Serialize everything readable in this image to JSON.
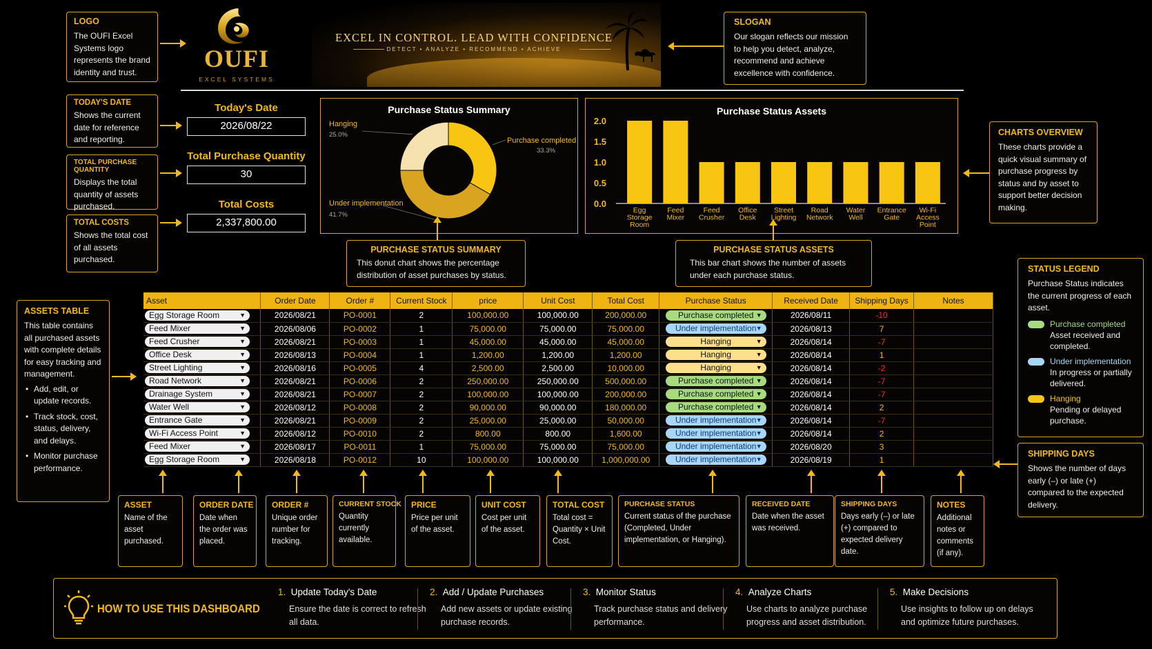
{
  "logo": {
    "mark": "OUFI",
    "sub": "EXCEL SYSTEMS"
  },
  "banner": {
    "headline": "EXCEL IN CONTROL. LEAD WITH CONFIDENCE",
    "tagline": "DETECT  •  ANALYZE  •  RECOMMEND  •  ACHIEVE"
  },
  "notes": {
    "logo": {
      "title": "LOGO",
      "text": "The OUFI Excel Systems logo represents the brand identity and trust."
    },
    "slogan": {
      "title": "SLOGAN",
      "text": "Our slogan reflects our mission to help you detect, analyze, recommend and achieve excellence with confidence."
    },
    "today": {
      "title": "TODAY'S DATE",
      "text": "Shows the current date for reference and reporting."
    },
    "qty": {
      "title": "TOTAL PURCHASE QUANTITY",
      "text": "Displays the total quantity of assets purchased."
    },
    "costs": {
      "title": "TOTAL COSTS",
      "text": "Shows the total cost of all assets purchased."
    },
    "charts": {
      "title": "CHARTS OVERVIEW",
      "text": "These charts provide a quick visual summary of purchase progress by status and by asset to support better decision making."
    },
    "summary": {
      "title": "PURCHASE STATUS SUMMARY",
      "text": "This donut chart shows the percentage distribution of asset purchases by status."
    },
    "assets": {
      "title": "PURCHASE STATUS ASSETS",
      "text": "This bar chart shows the number of assets under each purchase status."
    },
    "assets_table": {
      "title": "ASSETS TABLE",
      "text": "This table contains all purchased assets with complete details for easy tracking and management.",
      "bullets": [
        "Add, edit, or update records.",
        "Track stock, cost, status, delivery, and delays.",
        "Monitor purchase performance."
      ]
    },
    "legend": {
      "title": "STATUS LEGEND",
      "text": "Purchase Status indicates the current progress of each asset.",
      "items": [
        {
          "label": "Purchase completed",
          "desc": "Asset received and completed.",
          "color": "#a6dc7e"
        },
        {
          "label": "Under implementation",
          "desc": "In progress or partially delivered.",
          "color": "#a9d6f5"
        },
        {
          "label": "Hanging",
          "desc": "Pending or delayed purchase.",
          "color": "#f5c518"
        }
      ]
    },
    "shipping": {
      "title": "SHIPPING DAYS",
      "text": "Shows the number of days early (–) or late (+) compared to the expected delivery."
    }
  },
  "kpis": {
    "today_label": "Today's Date",
    "today_value": "2026/08/22",
    "qty_label": "Total Purchase Quantity",
    "qty_value": "30",
    "cost_label": "Total Costs",
    "cost_value": "2,337,800.00"
  },
  "table": {
    "columns": [
      "Asset",
      "Order Date",
      "Order #",
      "Current Stock",
      "price",
      "Unit Cost",
      "Total Cost",
      "Purchase Status",
      "Received Date",
      "Shipping Days",
      "Notes"
    ],
    "rows": [
      {
        "asset": "Egg Storage Room",
        "order_date": "2026/08/21",
        "order_no": "PO-0001",
        "stock": "2",
        "price": "100,000.00",
        "unit_cost": "100,000.00",
        "total": "200,000.00",
        "status": "Purchase completed",
        "received": "2026/08/11",
        "ship": "-10",
        "notes": ""
      },
      {
        "asset": "Feed Mixer",
        "order_date": "2026/08/06",
        "order_no": "PO-0002",
        "stock": "1",
        "price": "75,000.00",
        "unit_cost": "75,000.00",
        "total": "75,000.00",
        "status": "Under implementation",
        "received": "2026/08/13",
        "ship": "7",
        "notes": ""
      },
      {
        "asset": "Feed Crusher",
        "order_date": "2026/08/21",
        "order_no": "PO-0003",
        "stock": "1",
        "price": "45,000.00",
        "unit_cost": "45,000.00",
        "total": "45,000.00",
        "status": "Hanging",
        "received": "2026/08/14",
        "ship": "-7",
        "notes": ""
      },
      {
        "asset": "Office Desk",
        "order_date": "2026/08/13",
        "order_no": "PO-0004",
        "stock": "1",
        "price": "1,200.00",
        "unit_cost": "1,200.00",
        "total": "1,200.00",
        "status": "Hanging",
        "received": "2026/08/14",
        "ship": "1",
        "notes": ""
      },
      {
        "asset": "Street Lighting",
        "order_date": "2026/08/16",
        "order_no": "PO-0005",
        "stock": "4",
        "price": "2,500.00",
        "unit_cost": "2,500.00",
        "total": "10,000.00",
        "status": "Hanging",
        "received": "2026/08/14",
        "ship": "-2",
        "notes": ""
      },
      {
        "asset": "Road Network",
        "order_date": "2026/08/21",
        "order_no": "PO-0006",
        "stock": "2",
        "price": "250,000.00",
        "unit_cost": "250,000.00",
        "total": "500,000.00",
        "status": "Purchase completed",
        "received": "2026/08/14",
        "ship": "-7",
        "notes": ""
      },
      {
        "asset": "Drainage System",
        "order_date": "2026/08/21",
        "order_no": "PO-0007",
        "stock": "2",
        "price": "100,000.00",
        "unit_cost": "100,000.00",
        "total": "200,000.00",
        "status": "Purchase completed",
        "received": "2026/08/14",
        "ship": "-7",
        "notes": ""
      },
      {
        "asset": "Water Well",
        "order_date": "2026/08/12",
        "order_no": "PO-0008",
        "stock": "2",
        "price": "90,000.00",
        "unit_cost": "90,000.00",
        "total": "180,000.00",
        "status": "Purchase completed",
        "received": "2026/08/14",
        "ship": "2",
        "notes": ""
      },
      {
        "asset": "Entrance Gate",
        "order_date": "2026/08/21",
        "order_no": "PO-0009",
        "stock": "2",
        "price": "25,000.00",
        "unit_cost": "25,000.00",
        "total": "50,000.00",
        "status": "Under implementation",
        "received": "2026/08/14",
        "ship": "-7",
        "notes": ""
      },
      {
        "asset": "Wi-Fi Access Point",
        "order_date": "2026/08/12",
        "order_no": "PO-0010",
        "stock": "2",
        "price": "800.00",
        "unit_cost": "800.00",
        "total": "1,600.00",
        "status": "Under implementation",
        "received": "2026/08/14",
        "ship": "2",
        "notes": ""
      },
      {
        "asset": "Feed Mixer",
        "order_date": "2026/08/17",
        "order_no": "PO-0011",
        "stock": "1",
        "price": "75,000.00",
        "unit_cost": "75,000.00",
        "total": "75,000.00",
        "status": "Under implementation",
        "received": "2026/08/20",
        "ship": "3",
        "notes": ""
      },
      {
        "asset": "Egg Storage Room",
        "order_date": "2026/08/18",
        "order_no": "PO-0012",
        "stock": "10",
        "price": "100,000.00",
        "unit_cost": "100,000.00",
        "total": "1,000,000.00",
        "status": "Under implementation",
        "received": "2026/08/19",
        "ship": "1",
        "notes": ""
      }
    ]
  },
  "col_notes": [
    {
      "title": "ASSET",
      "text": "Name of the asset purchased."
    },
    {
      "title": "ORDER DATE",
      "text": "Date when the order was placed."
    },
    {
      "title": "ORDER #",
      "text": "Unique order number for tracking."
    },
    {
      "title": "CURRENT STOCK",
      "text": "Quantity currently available."
    },
    {
      "title": "PRICE",
      "text": "Price per unit of the asset."
    },
    {
      "title": "UNIT COST",
      "text": "Cost per unit of the asset."
    },
    {
      "title": "TOTAL COST",
      "text": "Total cost = Quantity × Unit Cost."
    },
    {
      "title": "PURCHASE STATUS",
      "text": "Current status of the purchase (Completed, Under implementation, or Hanging)."
    },
    {
      "title": "RECEIVED DATE",
      "text": "Date when the asset was received."
    },
    {
      "title": "SHIPPING DAYS",
      "text": "Days early (–) or late (+) compared to expected delivery date."
    },
    {
      "title": "NOTES",
      "text": "Additional notes or comments (if any)."
    }
  ],
  "howto": {
    "title": "HOW TO USE THIS DASHBOARD",
    "steps": [
      {
        "num": "1.",
        "title": "Update Today's Date",
        "text": "Ensure the date is correct to refresh all data."
      },
      {
        "num": "2.",
        "title": "Add / Update Purchases",
        "text": "Add new assets or update existing purchase records."
      },
      {
        "num": "3.",
        "title": "Monitor Status",
        "text": "Track purchase status and delivery performance."
      },
      {
        "num": "4.",
        "title": "Analyze Charts",
        "text": "Use charts to analyze purchase progress and asset distribution."
      },
      {
        "num": "5.",
        "title": "Make Decisions",
        "text": "Use insights to follow up on delays and optimize future purchases."
      }
    ]
  },
  "chart_data": [
    {
      "type": "pie",
      "title": "Purchase Status Summary",
      "categories": [
        "Purchase completed",
        "Under implementation",
        "Hanging"
      ],
      "values": [
        33.3,
        41.7,
        25.0
      ],
      "labels": [
        "33.3%",
        "41.7%",
        "25.0%"
      ],
      "colors": [
        "#f7c512",
        "#d9a520",
        "#f6e2b0"
      ]
    },
    {
      "type": "bar",
      "title": "Purchase Status Assets",
      "categories": [
        "Egg Storage Room",
        "Feed Mixer",
        "Feed Crusher",
        "Office Desk",
        "Street Lighting",
        "Road Network",
        "Water Well",
        "Entrance Gate",
        "Wi-Fi Access Point"
      ],
      "values": [
        2,
        2,
        1,
        1,
        1,
        1,
        1,
        1,
        1
      ],
      "ylim": [
        0,
        2.0
      ],
      "yticks": [
        "2.0",
        "1.5",
        "1.0",
        "0.5",
        "0.0"
      ],
      "color": "#f7c512"
    }
  ]
}
